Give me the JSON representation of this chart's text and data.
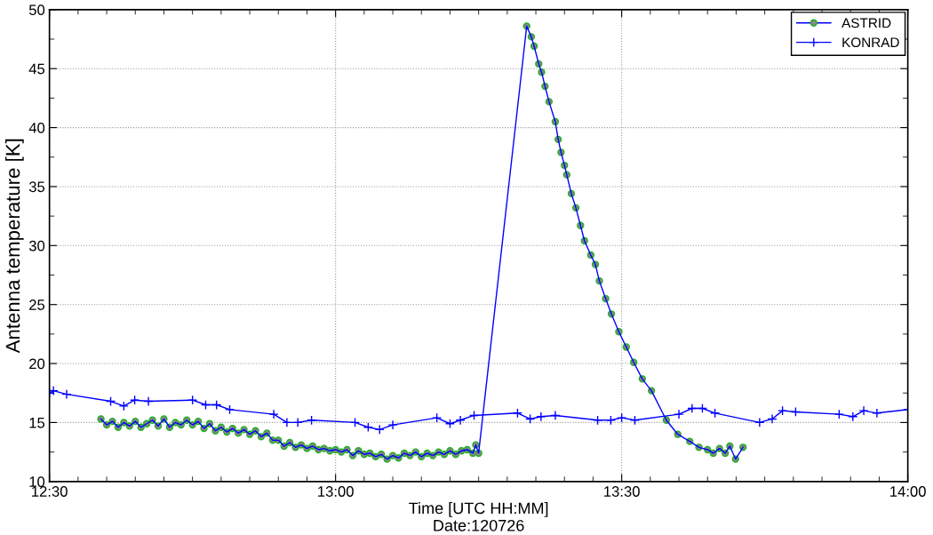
{
  "chart_data": {
    "type": "line",
    "xlabel": "Time [UTC HH:MM]\nDate:120726",
    "ylabel": "Antenna temperature [K]",
    "xlim": [
      12.5,
      14.0
    ],
    "xticks": [
      {
        "value": 12.5,
        "label": "12:30"
      },
      {
        "value": 13.0,
        "label": "13:00"
      },
      {
        "value": 13.5,
        "label": "13:30"
      },
      {
        "value": 14.0,
        "label": "14:00"
      }
    ],
    "ylim": [
      10,
      50
    ],
    "yticks": [
      10,
      15,
      20,
      25,
      30,
      35,
      40,
      45,
      50
    ],
    "grid": true,
    "legend": "top right",
    "series": [
      {
        "name": "ASTRID",
        "color": "#0000ff",
        "marker": "circle",
        "x": [
          12.59,
          12.6,
          12.61,
          12.62,
          12.63,
          12.64,
          12.65,
          12.66,
          12.67,
          12.68,
          12.69,
          12.7,
          12.71,
          12.72,
          12.73,
          12.74,
          12.75,
          12.76,
          12.77,
          12.78,
          12.79,
          12.8,
          12.81,
          12.82,
          12.83,
          12.84,
          12.85,
          12.86,
          12.87,
          12.88,
          12.89,
          12.9,
          12.91,
          12.92,
          12.93,
          12.94,
          12.95,
          12.96,
          12.97,
          12.98,
          12.99,
          13.0,
          13.01,
          13.02,
          13.03,
          13.04,
          13.05,
          13.06,
          13.07,
          13.08,
          13.09,
          13.1,
          13.11,
          13.12,
          13.13,
          13.14,
          13.15,
          13.16,
          13.17,
          13.18,
          13.19,
          13.2,
          13.21,
          13.22,
          13.23,
          13.24,
          13.245,
          13.25,
          13.334,
          13.342,
          13.347,
          13.355,
          13.36,
          13.366,
          13.373,
          13.384,
          13.389,
          13.394,
          13.4,
          13.404,
          13.412,
          13.42,
          13.428,
          13.435,
          13.446,
          13.454,
          13.461,
          13.472,
          13.482,
          13.495,
          13.508,
          13.521,
          13.536,
          13.552,
          13.578,
          13.598,
          13.619,
          13.635,
          13.65,
          13.66,
          13.671,
          13.681,
          13.689,
          13.699,
          13.712
        ],
        "values": [
          15.3,
          14.8,
          15.1,
          14.6,
          15.0,
          14.7,
          15.1,
          14.6,
          14.9,
          15.2,
          14.7,
          15.3,
          14.6,
          15.0,
          14.8,
          15.2,
          14.8,
          15.1,
          14.5,
          14.9,
          14.3,
          14.6,
          14.2,
          14.5,
          14.1,
          14.4,
          14.0,
          14.3,
          13.8,
          14.1,
          13.5,
          13.5,
          13.0,
          13.3,
          12.9,
          13.1,
          12.8,
          13.0,
          12.7,
          12.8,
          12.6,
          12.7,
          12.5,
          12.7,
          12.2,
          12.6,
          12.3,
          12.4,
          12.1,
          12.3,
          11.9,
          12.2,
          12.0,
          12.4,
          12.2,
          12.5,
          12.1,
          12.4,
          12.2,
          12.5,
          12.3,
          12.6,
          12.3,
          12.6,
          12.7,
          12.4,
          13.1,
          12.4,
          48.6,
          47.7,
          46.9,
          45.4,
          44.7,
          43.5,
          42.2,
          40.5,
          39.0,
          37.9,
          36.8,
          36.0,
          34.4,
          33.2,
          31.7,
          30.4,
          29.2,
          28.4,
          27.0,
          25.5,
          24.2,
          22.7,
          21.4,
          20.1,
          18.7,
          17.7,
          15.2,
          14.0,
          13.4,
          12.9,
          12.7,
          12.4,
          12.8,
          12.4,
          13.0,
          11.9,
          12.9
        ]
      },
      {
        "name": "KONRAD",
        "color": "#0000ff",
        "marker": "cross",
        "x": [
          12.5,
          12.507,
          12.53,
          12.607,
          12.63,
          12.649,
          12.673,
          12.75,
          12.773,
          12.792,
          12.815,
          12.892,
          12.915,
          12.934,
          12.958,
          13.034,
          13.057,
          13.077,
          13.1,
          13.177,
          13.2,
          13.218,
          13.242,
          13.318,
          13.34,
          13.359,
          13.384,
          13.458,
          13.481,
          13.5,
          13.523,
          13.6,
          13.623,
          13.641,
          13.663,
          13.741,
          13.763,
          13.781,
          13.804,
          13.88,
          13.904,
          13.923,
          13.946,
          14.0
        ],
        "values": [
          17.5,
          17.7,
          17.4,
          16.8,
          16.4,
          16.9,
          16.8,
          16.9,
          16.5,
          16.5,
          16.1,
          15.7,
          15.0,
          15.0,
          15.2,
          15.0,
          14.6,
          14.4,
          14.8,
          15.4,
          14.9,
          15.2,
          15.6,
          15.8,
          15.3,
          15.5,
          15.6,
          15.2,
          15.2,
          15.4,
          15.2,
          15.7,
          16.2,
          16.2,
          15.8,
          15.0,
          15.3,
          16.0,
          15.9,
          15.7,
          15.5,
          16.0,
          15.8,
          16.1
        ]
      }
    ]
  }
}
